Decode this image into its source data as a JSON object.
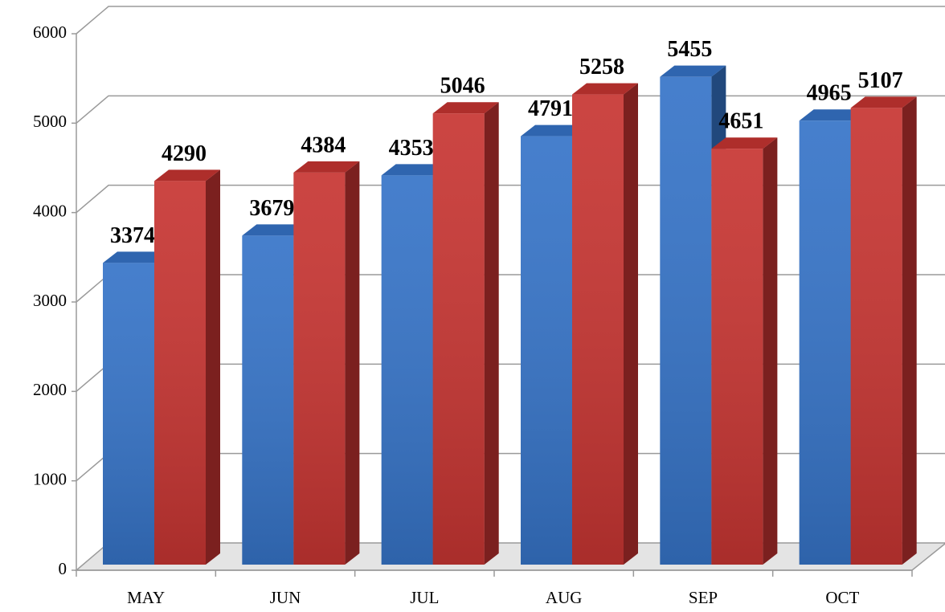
{
  "chart_data": {
    "type": "bar3d",
    "categories": [
      "MAY",
      "JUN",
      "JUL",
      "AUG",
      "SEP",
      "OCT"
    ],
    "series": [
      {
        "color": "#3674c8",
        "values": [
          3374,
          3679,
          4353,
          4791,
          5455,
          4965
        ]
      },
      {
        "color": "#c73532",
        "values": [
          4290,
          4384,
          5046,
          5258,
          4651,
          5107
        ]
      }
    ],
    "ylim": [
      0,
      6000
    ],
    "yticks": [
      0,
      1000,
      2000,
      3000,
      4000,
      5000,
      6000
    ],
    "grid": true
  }
}
